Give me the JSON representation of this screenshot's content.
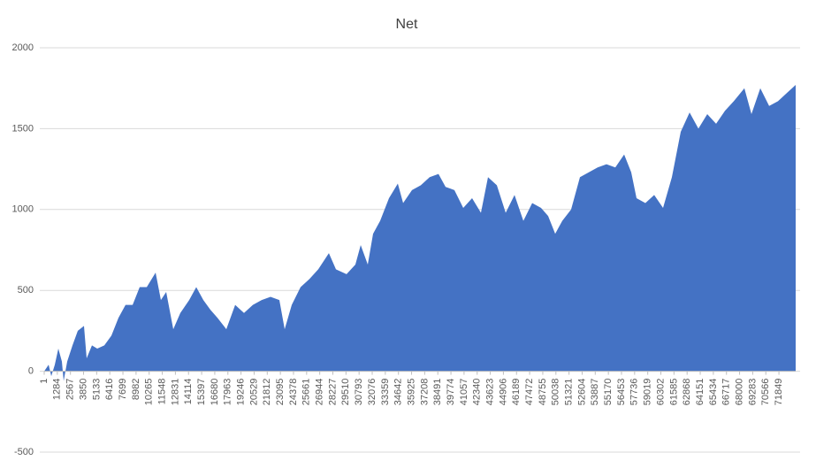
{
  "chart_data": {
    "type": "area",
    "title": "Net",
    "color": "#4472c4",
    "grid": true,
    "x": [
      1,
      433,
      693,
      1038,
      1384,
      1730,
      1903,
      2249,
      2767,
      3286,
      3891,
      4151,
      4669,
      5188,
      5880,
      6571,
      7263,
      7954,
      8647,
      9338,
      10029,
      10894,
      11412,
      11931,
      12623,
      13314,
      14179,
      14870,
      15562,
      16253,
      16945,
      17810,
      18674,
      19539,
      20403,
      21268,
      22132,
      22997,
      23515,
      24207,
      25071,
      25936,
      26800,
      27838,
      28529,
      29566,
      30431,
      30950,
      31641,
      32160,
      32851,
      33716,
      34580,
      35099,
      35963,
      36828,
      37692,
      38557,
      39249,
      40113,
      40978,
      41842,
      42707,
      43398,
      44263,
      45128,
      45992,
      46857,
      47721,
      48586,
      49278,
      49969,
      50661,
      51525,
      52390,
      53254,
      54119,
      54983,
      55848,
      56712,
      57404,
      57922,
      58787,
      59651,
      60516,
      61380,
      62245,
      63110,
      63974,
      64839,
      65703,
      66568,
      67432,
      68470,
      69161,
      70026,
      70890,
      71755,
      72619,
      73484
    ],
    "values": [
      0,
      40,
      -30,
      40,
      140,
      60,
      -60,
      60,
      160,
      250,
      280,
      80,
      160,
      140,
      160,
      220,
      330,
      410,
      410,
      520,
      520,
      610,
      440,
      490,
      260,
      360,
      440,
      520,
      440,
      380,
      330,
      260,
      410,
      360,
      410,
      440,
      460,
      440,
      260,
      410,
      520,
      570,
      630,
      730,
      630,
      600,
      660,
      780,
      660,
      850,
      930,
      1070,
      1160,
      1040,
      1120,
      1150,
      1200,
      1220,
      1140,
      1120,
      1010,
      1070,
      980,
      1200,
      1150,
      980,
      1090,
      930,
      1040,
      1010,
      960,
      850,
      930,
      1000,
      1200,
      1230,
      1260,
      1280,
      1260,
      1340,
      1230,
      1070,
      1040,
      1090,
      1010,
      1200,
      1480,
      1600,
      1500,
      1590,
      1530,
      1610,
      1670,
      1750,
      1590,
      1750,
      1640,
      1670,
      1720,
      1770
    ],
    "xlim": [
      1,
      73484
    ],
    "xticks": [
      1,
      1284,
      2567,
      3850,
      5133,
      6416,
      7699,
      8982,
      10265,
      11548,
      12831,
      14114,
      15397,
      16680,
      17963,
      19246,
      20529,
      21812,
      23095,
      24378,
      25661,
      26944,
      28227,
      29510,
      30793,
      32076,
      33359,
      34642,
      35925,
      37208,
      38491,
      39774,
      41057,
      42340,
      43623,
      44906,
      46189,
      47472,
      48755,
      50038,
      51321,
      52604,
      53887,
      55170,
      56453,
      57736,
      59019,
      60302,
      61585,
      62868,
      64151,
      65434,
      66717,
      68000,
      69283,
      70566,
      71849
    ],
    "ylim": [
      -500,
      2000
    ],
    "yticks": [
      -500,
      0,
      500,
      1000,
      1500,
      2000
    ]
  }
}
